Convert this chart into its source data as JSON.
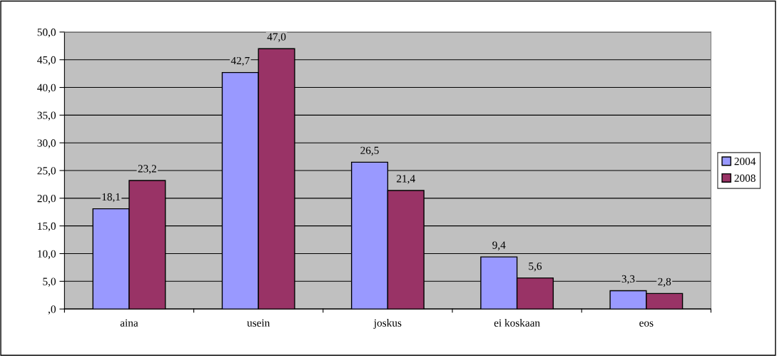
{
  "chart_data": {
    "type": "bar",
    "categories": [
      "aina",
      "usein",
      "joskus",
      "ei koskaan",
      "eos"
    ],
    "series": [
      {
        "name": "2004",
        "color": "#9999ff",
        "values": [
          18.1,
          42.7,
          26.5,
          9.4,
          3.3
        ],
        "value_labels": [
          "18,1",
          "42,7",
          "26,5",
          "9,4",
          "3,3"
        ]
      },
      {
        "name": "2008",
        "color": "#993366",
        "values": [
          23.2,
          47.0,
          21.4,
          5.6,
          2.8
        ],
        "value_labels": [
          "23,2",
          "47,0",
          "21,4",
          "5,6",
          "2,8"
        ]
      }
    ],
    "ylim": [
      0,
      50
    ],
    "yticks": [
      {
        "value": 0,
        "label": ",0"
      },
      {
        "value": 5,
        "label": "5,0"
      },
      {
        "value": 10,
        "label": "10,0"
      },
      {
        "value": 15,
        "label": "15,0"
      },
      {
        "value": 20,
        "label": "20,0"
      },
      {
        "value": 25,
        "label": "25,0"
      },
      {
        "value": 30,
        "label": "30,0"
      },
      {
        "value": 35,
        "label": "35,0"
      },
      {
        "value": 40,
        "label": "40,0"
      },
      {
        "value": 45,
        "label": "45,0"
      },
      {
        "value": 50,
        "label": "50,0"
      }
    ],
    "grid": "y",
    "legend": "right"
  }
}
